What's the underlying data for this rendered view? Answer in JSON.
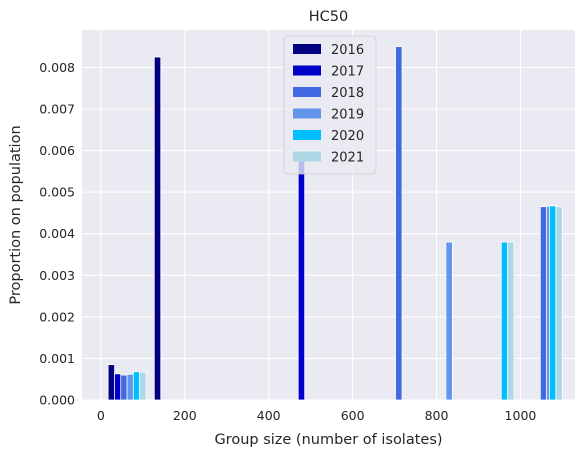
{
  "chart_data": {
    "type": "bar",
    "title": "HC50",
    "xlabel": "Group size (number of isolates)",
    "ylabel": "Proportion on population",
    "xlim": [
      -45,
      1130
    ],
    "ylim": [
      0,
      0.0089
    ],
    "xticks": [
      0,
      200,
      400,
      600,
      800,
      1000
    ],
    "yticks": [
      0.0,
      0.001,
      0.002,
      0.003,
      0.004,
      0.005,
      0.006,
      0.007,
      0.008
    ],
    "xtick_labels": [
      "0",
      "200",
      "400",
      "600",
      "800",
      "1000"
    ],
    "ytick_labels": [
      "0.000",
      "0.001",
      "0.002",
      "0.003",
      "0.004",
      "0.005",
      "0.006",
      "0.007",
      "0.008"
    ],
    "grid": true,
    "legend_position": "upper-center",
    "series": [
      {
        "name": "2016",
        "color": "#000080",
        "bars": [
          {
            "x": 25,
            "y": 0.00085
          },
          {
            "x": 135,
            "y": 0.00825
          }
        ]
      },
      {
        "name": "2017",
        "color": "#0000cd",
        "bars": [
          {
            "x": 40,
            "y": 0.00063
          },
          {
            "x": 478,
            "y": 0.0059
          }
        ]
      },
      {
        "name": "2018",
        "color": "#4169e1",
        "bars": [
          {
            "x": 55,
            "y": 0.0006
          },
          {
            "x": 710,
            "y": 0.0085
          },
          {
            "x": 1055,
            "y": 0.00465
          }
        ]
      },
      {
        "name": "2019",
        "color": "#6495ed",
        "bars": [
          {
            "x": 70,
            "y": 0.00062
          },
          {
            "x": 830,
            "y": 0.0038
          },
          {
            "x": 1070,
            "y": 0.00466
          }
        ]
      },
      {
        "name": "2020",
        "color": "#00bfff",
        "bars": [
          {
            "x": 85,
            "y": 0.00068
          },
          {
            "x": 962,
            "y": 0.0038
          },
          {
            "x": 1077,
            "y": 0.00467
          }
        ]
      },
      {
        "name": "2021",
        "color": "#add8e6",
        "bars": [
          {
            "x": 100,
            "y": 0.00067
          },
          {
            "x": 977,
            "y": 0.0038
          },
          {
            "x": 1092,
            "y": 0.00465
          }
        ]
      }
    ]
  }
}
